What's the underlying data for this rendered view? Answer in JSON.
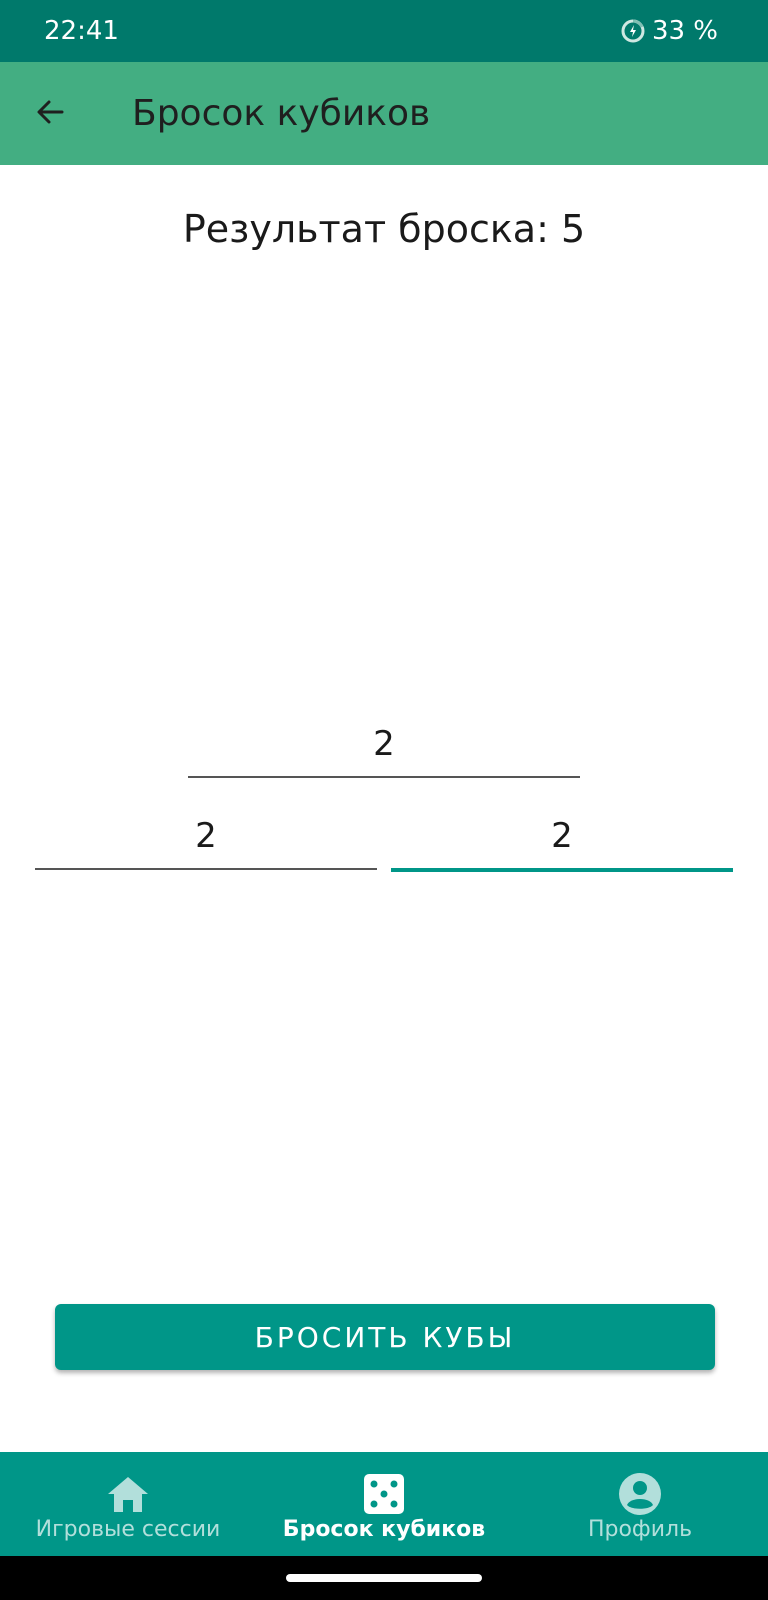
{
  "status_bar": {
    "time": "22:41",
    "battery": "33 %",
    "battery_icon": "battery-saver-icon"
  },
  "app_bar": {
    "title": "Бросок кубиков",
    "back_icon": "arrow-back-icon"
  },
  "main": {
    "result_text": "Результат броска: 5",
    "dice": {
      "top": "2",
      "left": "2",
      "right": "2"
    },
    "roll_button_label": "БРОСИТЬ КУБЫ"
  },
  "bottom_nav": {
    "items": [
      {
        "label": "Игровые сессии",
        "icon": "home-icon",
        "active": false
      },
      {
        "label": "Бросок кубиков",
        "icon": "dice-icon",
        "active": true
      },
      {
        "label": "Профиль",
        "icon": "account-circle-icon",
        "active": false
      }
    ]
  },
  "colors": {
    "status_bar": "#00796b",
    "app_bar": "#43ae82",
    "accent": "#009688",
    "nav_inactive": "#b2dfdb"
  }
}
